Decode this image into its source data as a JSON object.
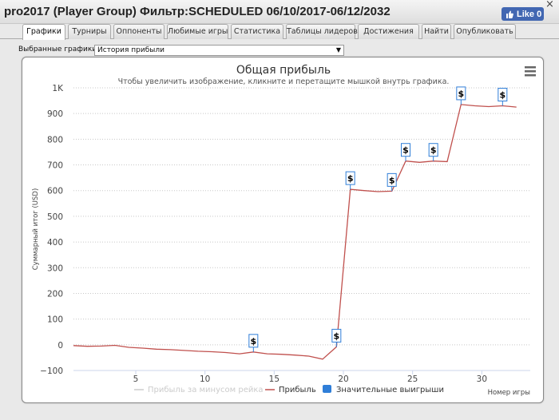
{
  "window": {
    "title": "pro2017 (Player Group) Фильтр:SCHEDULED 06/10/2017-06/12/2032",
    "like_label": "Like 0",
    "close_glyph": "×"
  },
  "tabs": [
    {
      "label": "Графики",
      "active": true
    },
    {
      "label": "Турниры",
      "active": false
    },
    {
      "label": "Оппоненты",
      "active": false
    },
    {
      "label": "Любимые игры",
      "active": false
    },
    {
      "label": "Статистика",
      "active": false
    },
    {
      "label": "Таблицы лидеров",
      "active": false
    },
    {
      "label": "Достижения",
      "active": false
    },
    {
      "label": "Найти",
      "active": false
    },
    {
      "label": "Опубликовать",
      "active": false
    }
  ],
  "selector": {
    "label": "Выбранные графики:",
    "value": "История прибыли"
  },
  "icons": {
    "menu": "hamburger-menu-icon",
    "like": "thumbs-up-icon",
    "dropdown": "dropdown-arrow-icon",
    "marker": "dollar-flag-icon"
  },
  "chart_data": {
    "type": "line",
    "title": "Общая прибыль",
    "subtitle": "Чтобы увеличить изображение, кликните и перетащите мышкой внутрь графика.",
    "xlabel": "Номер игры",
    "ylabel": "Суммарный итог (USD)",
    "ylim": [
      -100,
      1000
    ],
    "xlim": [
      0.5,
      33.5
    ],
    "yticks": [
      -100,
      0,
      100,
      200,
      300,
      400,
      500,
      600,
      700,
      800,
      900,
      1000
    ],
    "ytick_labels": [
      "−100",
      "0",
      "100",
      "200",
      "300",
      "400",
      "500",
      "600",
      "700",
      "800",
      "900",
      "1K"
    ],
    "xticks": [
      5,
      10,
      15,
      20,
      25,
      30
    ],
    "xtick_labels": [
      "5",
      "10",
      "15",
      "20",
      "25",
      "30"
    ],
    "grid": "horizontal-dotted",
    "legend_position": "bottom",
    "series": [
      {
        "name": "Прибыль за минусом рейка",
        "color": "#cccccc",
        "hidden": true,
        "points": []
      },
      {
        "name": "Прибыль",
        "color": "#c0504d",
        "points": [
          [
            0.5,
            -3
          ],
          [
            1.5,
            -6
          ],
          [
            2.5,
            -5
          ],
          [
            3.5,
            -2
          ],
          [
            4.5,
            -10
          ],
          [
            5.5,
            -13
          ],
          [
            6.5,
            -17
          ],
          [
            7.5,
            -19
          ],
          [
            8.5,
            -22
          ],
          [
            9.5,
            -25
          ],
          [
            10.5,
            -27
          ],
          [
            11.5,
            -30
          ],
          [
            12.5,
            -35
          ],
          [
            13.5,
            -28
          ],
          [
            14.5,
            -35
          ],
          [
            15.5,
            -37
          ],
          [
            16.5,
            -40
          ],
          [
            17.5,
            -44
          ],
          [
            18.5,
            -56
          ],
          [
            19.5,
            -8
          ],
          [
            20.5,
            605
          ],
          [
            21.5,
            600
          ],
          [
            22.5,
            596
          ],
          [
            23.5,
            598
          ],
          [
            24.5,
            715
          ],
          [
            25.5,
            710
          ],
          [
            26.5,
            715
          ],
          [
            27.5,
            713
          ],
          [
            28.5,
            935
          ],
          [
            29.5,
            930
          ],
          [
            30.5,
            927
          ],
          [
            31.5,
            930
          ],
          [
            32.5,
            925
          ]
        ]
      },
      {
        "name": "Значительные выигрыши",
        "color": "#2f7ed8",
        "type": "flags",
        "flag_text": "$",
        "points": [
          [
            13.5,
            -28
          ],
          [
            19.5,
            -8
          ],
          [
            20.5,
            605
          ],
          [
            23.5,
            598
          ],
          [
            24.5,
            715
          ],
          [
            26.5,
            715
          ],
          [
            28.5,
            935
          ],
          [
            31.5,
            930
          ]
        ]
      }
    ]
  }
}
